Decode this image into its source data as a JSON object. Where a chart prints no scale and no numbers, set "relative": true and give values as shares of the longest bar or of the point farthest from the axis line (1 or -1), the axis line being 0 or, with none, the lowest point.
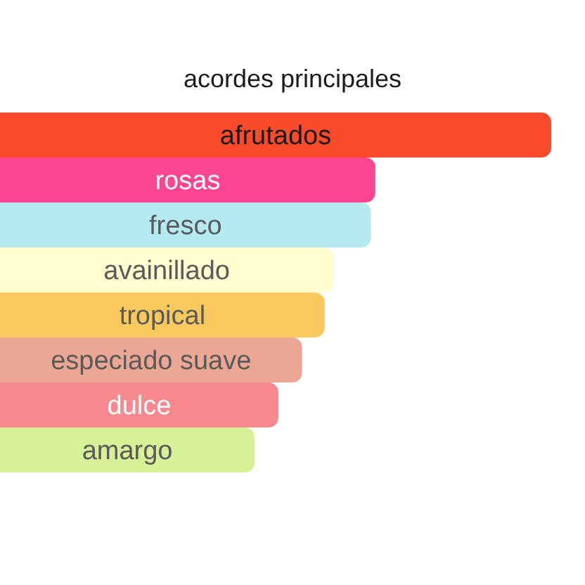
{
  "chart_data": {
    "type": "bar",
    "orientation": "horizontal",
    "relative": true,
    "title": "acordes principales",
    "categories": [
      "afrutados",
      "rosas",
      "fresco",
      "avainillado",
      "tropical",
      "especiado suave",
      "dulce",
      "amargo"
    ],
    "values": [
      1,
      0.681,
      0.673,
      0.605,
      0.589,
      0.548,
      0.505,
      0.462
    ],
    "colors": [
      "#fc4b2a",
      "#fe4592",
      "#b3ebf0",
      "#fffdd0",
      "#f9c95d",
      "#eba793",
      "#f5898d",
      "#d8f096"
    ]
  }
}
